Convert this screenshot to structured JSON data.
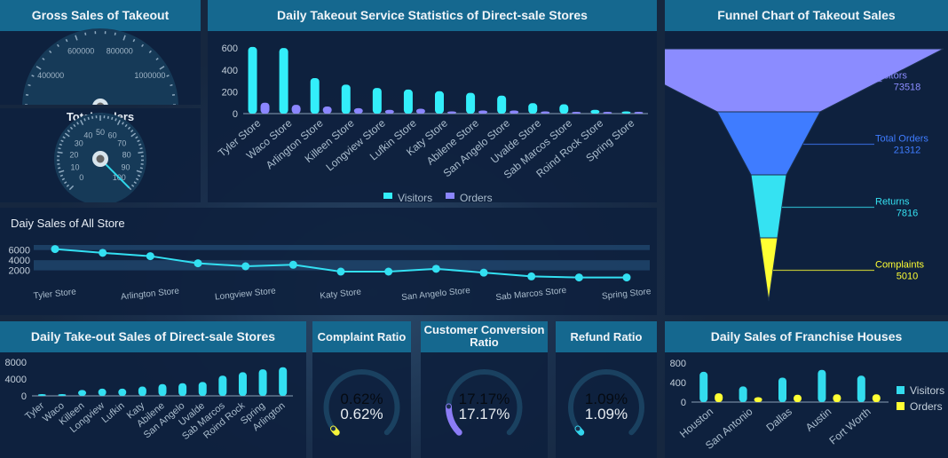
{
  "colors": {
    "header": "#15688f",
    "cyan": "#33e0f2",
    "purple": "#8b86ff",
    "blue": "#3f7cff",
    "yellow": "#ffff33"
  },
  "gross_sales": {
    "title": "Gross Sales of Takeout",
    "min": 0,
    "max": 1400000,
    "ticks": [
      "0",
      "200000",
      "400000",
      "600000",
      "800000",
      "1000000",
      "1200000",
      "1400000"
    ],
    "value": 1280000
  },
  "orders_gauge": {
    "title": "Total Orders",
    "min": 0,
    "max": 100,
    "ticks": [
      "0",
      "10",
      "20",
      "30",
      "40",
      "50",
      "60",
      "70",
      "80",
      "90",
      "100"
    ],
    "value": 100
  },
  "service_stats": {
    "title": "Daily Takeout Service Statistics of Direct-sale Stores",
    "chart_data": {
      "type": "bar",
      "categories": [
        "Tyler Store",
        "Waco Store",
        "Arlington Store",
        "Killeen Store",
        "Longview Store",
        "Lufkin Store",
        "Katy Store",
        "Abilene Store",
        "San Angelo Store",
        "Uvalde Store",
        "Sab Marcos Store",
        "Roind Rock Store",
        "Spring Store"
      ],
      "series": [
        {
          "name": "Visitors",
          "color": "#33eefa",
          "values": [
            610,
            600,
            325,
            265,
            235,
            220,
            205,
            190,
            165,
            95,
            85,
            35,
            20
          ]
        },
        {
          "name": "Orders",
          "color": "#8b86ff",
          "values": [
            100,
            80,
            65,
            50,
            35,
            45,
            20,
            28,
            28,
            20,
            12,
            8,
            8
          ]
        }
      ],
      "yticks": [
        "0",
        "200",
        "400",
        "600"
      ],
      "ylim": [
        0,
        650
      ],
      "legend": "bottom"
    }
  },
  "all_store": {
    "title": "Daiy Sales of All Store",
    "chart_data": {
      "type": "line",
      "categories": [
        "Tyler Store",
        "Waco Store",
        "Arlington Store",
        "Killeen Store",
        "Longview Store",
        "Lufkin Store",
        "Katy Store",
        "Abilene Store",
        "San Angelo Store",
        "Uvalde Store",
        "Sab Marcos Store",
        "Roind Rock Store",
        "Spring Store"
      ],
      "shown_labels": [
        "Tyler Store",
        "Arlington Store",
        "Longview Store",
        "Katy Store",
        "San Angelo Store",
        "Sab Marcos Store",
        "Spring Store"
      ],
      "values": [
        6200,
        5450,
        4800,
        3400,
        2800,
        3100,
        1750,
        1750,
        2300,
        1550,
        800,
        600,
        600
      ],
      "yticks": [
        "2000",
        "4000",
        "6000"
      ],
      "ylim": [
        0,
        7000
      ]
    }
  },
  "funnel": {
    "title": "Funnel Chart of Takeout Sales",
    "chart_data": {
      "type": "funnel",
      "items": [
        {
          "label": "Visitors",
          "value": "73518",
          "color": "#8b8cff"
        },
        {
          "label": "Total Orders",
          "value": "21312",
          "color": "#3f7cff"
        },
        {
          "label": "Returns",
          "value": "7816",
          "color": "#35e2f2"
        },
        {
          "label": "Complaints",
          "value": "5010",
          "color": "#ffff33"
        }
      ]
    }
  },
  "direct_sales": {
    "title": "Daily Take-out Sales of Direct-sale Stores",
    "chart_data": {
      "type": "bar",
      "categories": [
        "Tyler",
        "Waco",
        "Killeen",
        "Longview",
        "Lufkin",
        "Katy",
        "Abilene",
        "San Angelo",
        "Uvalde",
        "Sab Marcos",
        "Roind Rock",
        "Spring",
        "Arlington"
      ],
      "values": [
        300,
        300,
        1400,
        1700,
        1700,
        2200,
        2800,
        3000,
        3300,
        4800,
        5600,
        6300,
        6800
      ],
      "yticks": [
        "0",
        "4000",
        "8000"
      ],
      "ylim": [
        0,
        8000
      ]
    }
  },
  "ratios": [
    {
      "title": "Complaint Ratio",
      "value": "0.62%",
      "percent": 0.62,
      "color": "#f5f53a"
    },
    {
      "title": "Customer Conversion Ratio",
      "value": "17.17%",
      "percent": 17.17,
      "color": "#8b7cf6"
    },
    {
      "title": "Refund Ratio",
      "value": "1.09%",
      "percent": 1.09,
      "color": "#33d6ee"
    }
  ],
  "franchise": {
    "title": "Daily Sales of Franchise Houses",
    "chart_data": {
      "type": "bar",
      "categories": [
        "Houston",
        "San Antonio",
        "Dallas",
        "Austin",
        "Fort Worth"
      ],
      "series": [
        {
          "name": "Visitors",
          "color": "#33dcee",
          "values": [
            620,
            320,
            500,
            660,
            540
          ]
        },
        {
          "name": "Orders",
          "color": "#ffff33",
          "values": [
            180,
            100,
            150,
            160,
            160
          ]
        }
      ],
      "yticks": [
        "0",
        "400",
        "800"
      ],
      "ylim": [
        0,
        800
      ],
      "legend": "right"
    }
  }
}
